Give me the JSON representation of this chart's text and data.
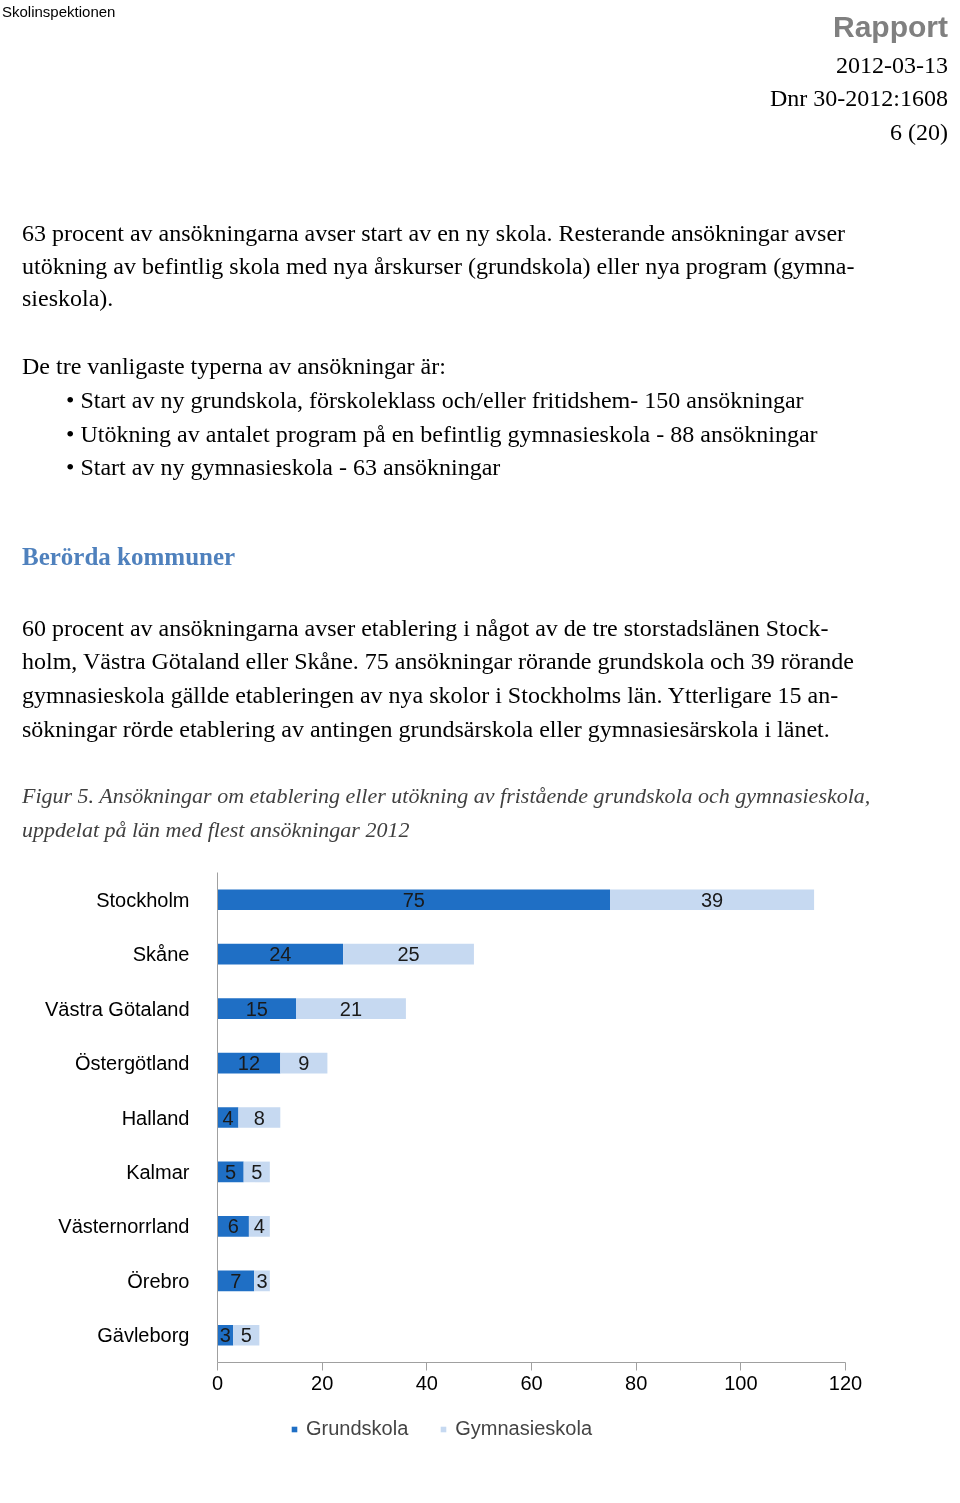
{
  "chart_data": {
    "type": "bar",
    "orientation": "horizontal",
    "stacked": true,
    "title": "Figur 5. Ansökningar om etablering eller utökning av fristående grundskola och gymnasieskola,\nuppdelat på län med flest ansökningar 2012",
    "annotations": [
      "Skolinspektionen",
      "Rapport",
      "2012-03-13",
      "Dnr 30-2012:1608",
      "6 (20)",
      "63 procent av ansökningarna avser start av en ny skola. Resterande ansökningar avser",
      "utökning av befintlig skola med nya årskurser (grundskola) eller nya program (gymna-",
      "sieskola).",
      "De tre vanligaste typerna av ansökningar är:",
      "•     Start av ny grundskola, förskoleklass och/eller fritidshem- 150 ansökningar",
      "•     Utökning av antalet program på en befintlig gymnasieskola - 88 ansökningar",
      "•     Start av ny gymnasieskola - 63 ansökningar",
      "Berörda kommuner",
      "60 procent av ansökningarna avser etablering i något av de tre storstadslänen Stock-",
      "holm, Västra Götaland eller Skåne. 75 ansökningar rörande grundskola och 39 rörande",
      "gymnasieskola gällde etableringen av nya skolor i Stockholms län. Ytterligare 15 an-",
      "sökningar rörde etablering av antingen grundsärskola eller gymnasiesärskola i länet."
    ],
    "categories": [
      "Stockholm",
      "Skåne",
      "Västra Götaland",
      "Östergötland",
      "Halland",
      "Kalmar",
      "Västernorrland",
      "Örebro",
      "Gävleborg"
    ],
    "series": [
      {
        "name": "Grundskola",
        "color": "#1f6fc5",
        "values": [
          75,
          24,
          15,
          12,
          4,
          5,
          6,
          7,
          3
        ]
      },
      {
        "name": "Gymnasieskola",
        "color": "#c6d9f1",
        "values": [
          39,
          25,
          21,
          9,
          8,
          5,
          4,
          3,
          5
        ]
      }
    ],
    "xlim": [
      0,
      120
    ],
    "xticks": [
      0,
      20,
      40,
      60,
      80,
      100,
      120
    ],
    "data_labels": true,
    "legend": "bottom",
    "grid": false
  }
}
